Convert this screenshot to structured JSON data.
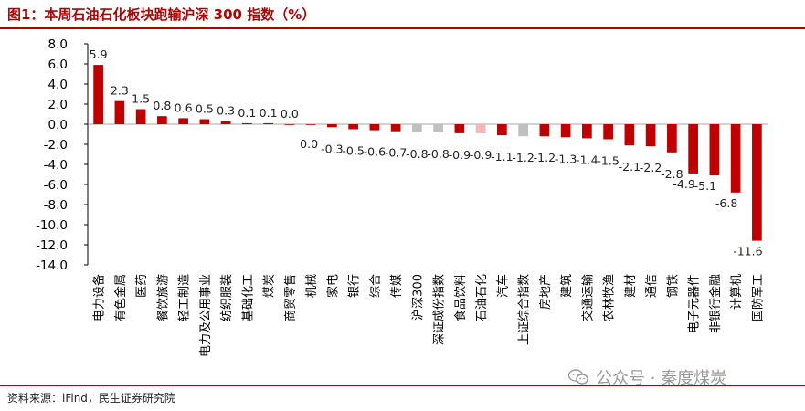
{
  "title": "图1：本周石油石化板块跑输沪深 300 指数（%）",
  "source": "资料来源：iFind，民生证券研究院",
  "watermark": "公众号 · 秦度煤炭",
  "watermark_icon": "wechat-icon",
  "colors": {
    "sector": "#c00000",
    "index": "#bfbfbf",
    "highlight": "#f4b6b6",
    "accent": "#b40000"
  },
  "chart_data": {
    "type": "bar",
    "ylim": [
      -14,
      8
    ],
    "yticks": [
      8.0,
      6.0,
      4.0,
      2.0,
      0.0,
      -2.0,
      -4.0,
      -6.0,
      -8.0,
      -10.0,
      -12.0,
      -14.0
    ],
    "ytick_labels": [
      "8.0",
      "6.0",
      "4.0",
      "2.0",
      "0.0",
      "-2.0",
      "-4.0",
      "-6.0",
      "-8.0",
      "-10.0",
      "-12.0",
      "-14.0"
    ],
    "grid": false,
    "legend": "none",
    "categories": [
      "电力设备",
      "有色金属",
      "医药",
      "餐饮旅游",
      "轻工制造",
      "电力及公用事业",
      "纺织服装",
      "基础化工",
      "煤炭",
      "商贸零售",
      "机械",
      "家电",
      "银行",
      "综合",
      "传媒",
      "沪深300",
      "深证成份指数",
      "食品饮料",
      "石油石化",
      "汽车",
      "上证综合指数",
      "房地产",
      "建筑",
      "交通运输",
      "农林牧渔",
      "建材",
      "通信",
      "钢铁",
      "电子元器件",
      "非银行金融",
      "计算机",
      "国防军工"
    ],
    "values": [
      5.9,
      2.3,
      1.5,
      0.8,
      0.6,
      0.5,
      0.3,
      0.1,
      0.1,
      0.0,
      0.0,
      -0.3,
      -0.5,
      -0.6,
      -0.7,
      -0.8,
      -0.8,
      -0.9,
      -0.9,
      -1.1,
      -1.2,
      -1.2,
      -1.3,
      -1.4,
      -1.5,
      -2.1,
      -2.2,
      -2.8,
      -4.9,
      -5.1,
      -6.8,
      -11.6
    ],
    "value_labels": [
      "5.9",
      "2.3",
      "1.5",
      "0.8",
      "0.6",
      "0.5",
      "0.3",
      "0.1",
      "0.1",
      "0.0",
      "0.0",
      "-0.3",
      "-0.5",
      "-0.6",
      "-0.7",
      "-0.8",
      "-0.8",
      "-0.9",
      "-0.9",
      "-1.1",
      "-1.2",
      "-1.2",
      "-1.3",
      "-1.4",
      "-1.5",
      "-2.1",
      "-2.2",
      "-2.8",
      "-4.9",
      "-5.1",
      "-6.8",
      "-11.6"
    ],
    "bar_kind": [
      "sector",
      "sector",
      "sector",
      "sector",
      "sector",
      "sector",
      "sector",
      "sector",
      "sector",
      "sector",
      "sector",
      "sector",
      "sector",
      "sector",
      "sector",
      "index",
      "index",
      "sector",
      "highlight",
      "sector",
      "index",
      "sector",
      "sector",
      "sector",
      "sector",
      "sector",
      "sector",
      "sector",
      "sector",
      "sector",
      "sector",
      "sector"
    ]
  }
}
